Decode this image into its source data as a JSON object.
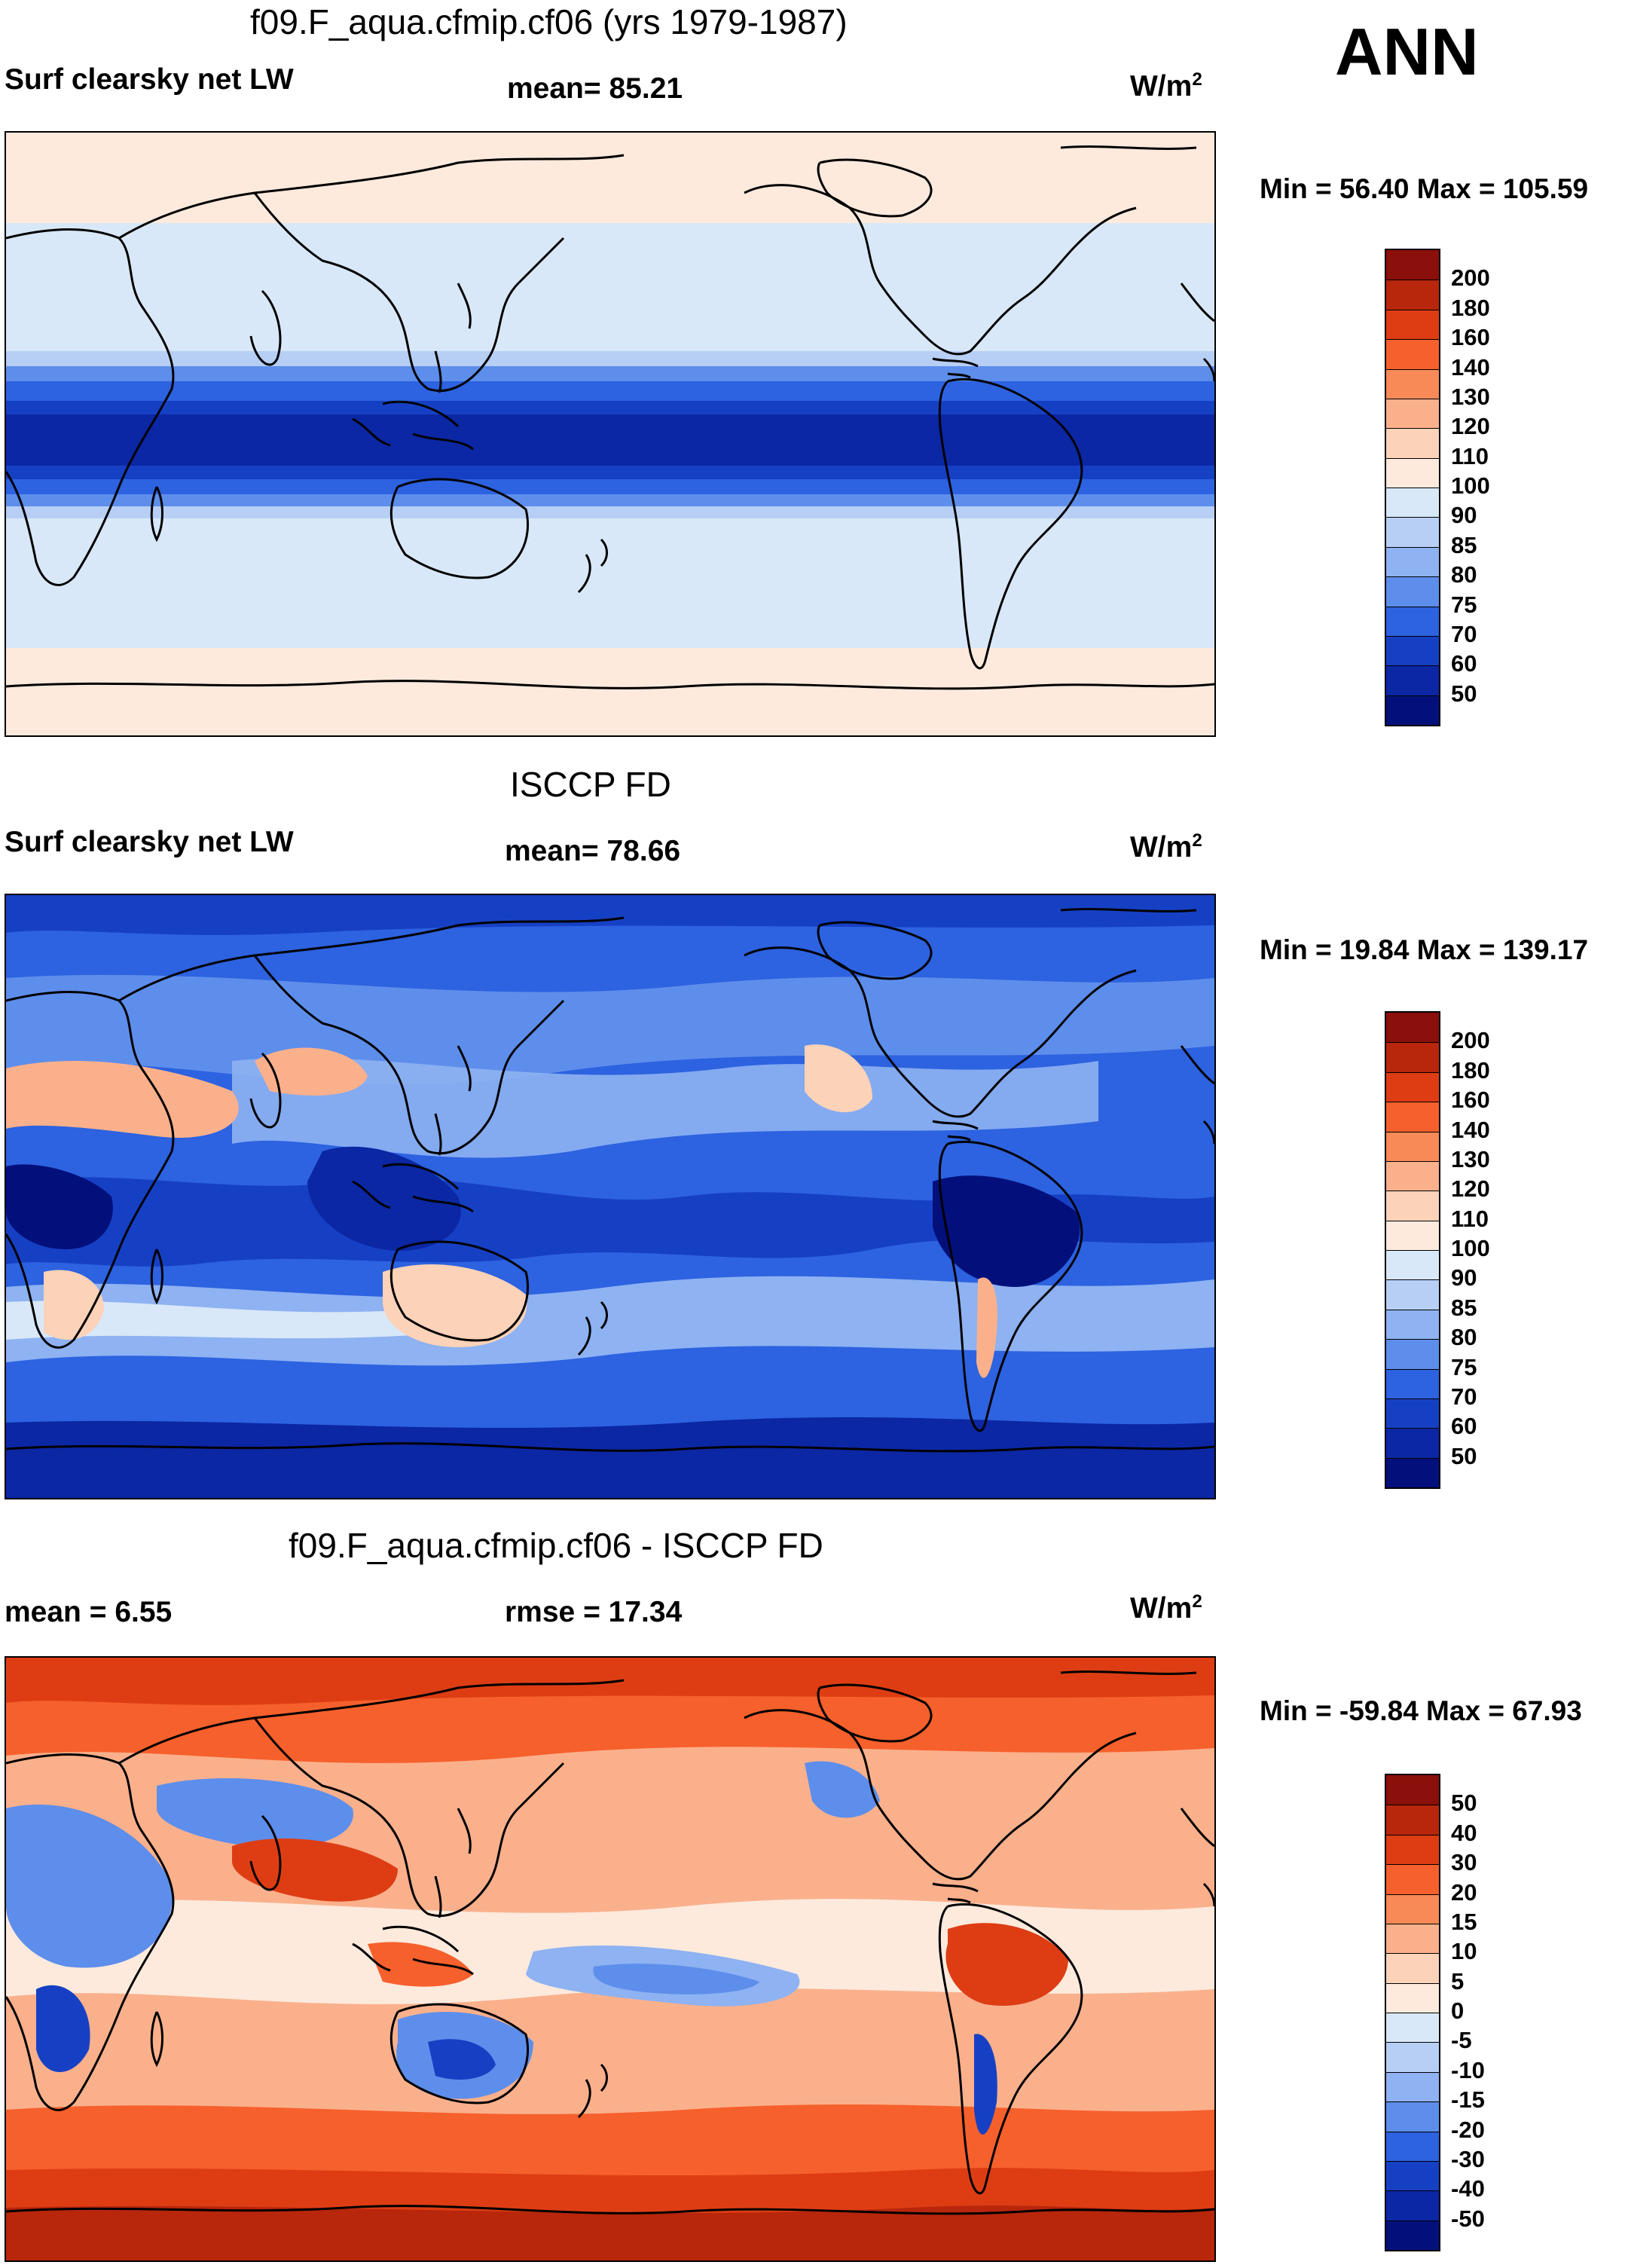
{
  "header": {
    "ann_label": "ANN"
  },
  "panels": [
    {
      "id": "model",
      "title": "f09.F_aqua.cfmip.cf06 (yrs 1979-1987)",
      "left_label": "Surf clearsky net LW",
      "center_label": "mean=  85.21",
      "units_text": "W/m",
      "units_sup": "2",
      "minmax": "Min =  56.40 Max = 105.59",
      "colorbar_ticks": [
        "200",
        "180",
        "160",
        "140",
        "130",
        "120",
        "110",
        "100",
        "90",
        "85",
        "80",
        "75",
        "70",
        "60",
        "50"
      ],
      "colorbar_colors": [
        "#8b0f0a",
        "#b8260c",
        "#de3d14",
        "#f6602c",
        "#f88a58",
        "#fbb08c",
        "#fcd2b8",
        "#fdeadd",
        "#d8e8f8",
        "#b7cff5",
        "#8eb2f2",
        "#5e8eeb",
        "#2d62e0",
        "#1640c4",
        "#0b27a4",
        "#03107c"
      ],
      "map_colors": {
        "polar": "#fdeadd",
        "midlat": "#d8e8f8",
        "band1": "#8eb2f2",
        "band2": "#2d62e0",
        "band3": "#1640c4",
        "core": "#0b27a4"
      }
    },
    {
      "id": "obs",
      "title": "ISCCP FD",
      "left_label": "Surf clearsky net LW",
      "center_label": "mean=  78.66",
      "units_text": "W/m",
      "units_sup": "2",
      "minmax": "Min =  19.84 Max = 139.17",
      "colorbar_ticks": [
        "200",
        "180",
        "160",
        "140",
        "130",
        "120",
        "110",
        "100",
        "90",
        "85",
        "80",
        "75",
        "70",
        "60",
        "50"
      ],
      "colorbar_colors": [
        "#8b0f0a",
        "#b8260c",
        "#de3d14",
        "#f6602c",
        "#f88a58",
        "#fbb08c",
        "#fcd2b8",
        "#fdeadd",
        "#d8e8f8",
        "#b7cff5",
        "#8eb2f2",
        "#5e8eeb",
        "#2d62e0",
        "#1640c4",
        "#0b27a4",
        "#03107c"
      ],
      "map_colors": {
        "base": "#2d62e0",
        "light": "#8eb2f2",
        "pale": "#d8e8f8",
        "deep": "#0b27a4",
        "darkest": "#03107c",
        "warm": "#fbb08c",
        "warm2": "#fcd2b8"
      }
    },
    {
      "id": "diff",
      "title": "f09.F_aqua.cfmip.cf06 - ISCCP FD",
      "left_label": "mean =   6.55",
      "center_label": "rmse =  17.34",
      "units_text": "W/m",
      "units_sup": "2",
      "minmax": "Min = -59.84 Max =  67.93",
      "colorbar_ticks": [
        "50",
        "40",
        "30",
        "20",
        "15",
        "10",
        "5",
        "0",
        "-5",
        "-10",
        "-15",
        "-20",
        "-30",
        "-40",
        "-50"
      ],
      "colorbar_colors": [
        "#8b0f0a",
        "#b8260c",
        "#de3d14",
        "#f6602c",
        "#f88a58",
        "#fbb08c",
        "#fcd2b8",
        "#fdeadd",
        "#d8e8f8",
        "#b7cff5",
        "#8eb2f2",
        "#5e8eeb",
        "#2d62e0",
        "#1640c4",
        "#0b27a4",
        "#03107c"
      ],
      "map_colors": {
        "base": "#fbb08c",
        "pale": "#fdeadd",
        "orange": "#f6602c",
        "red": "#de3d14",
        "darkred": "#b8260c",
        "blue": "#5e8eeb",
        "lightblue": "#b7cff5",
        "deepblue": "#1640c4"
      }
    }
  ]
}
